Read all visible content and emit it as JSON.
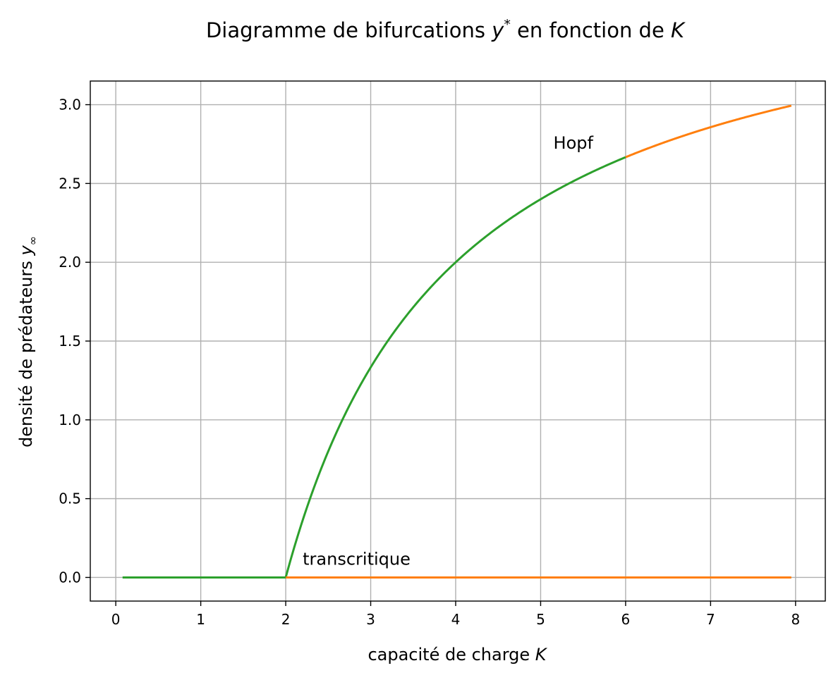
{
  "chart_data": {
    "type": "line",
    "title": {
      "prefix": "Diagramme de bifurcations ",
      "var": "y",
      "sup": "*",
      "middle": " en fonction de ",
      "param": "K"
    },
    "xlabel": {
      "text": "capacité de charge ",
      "var": "K"
    },
    "ylabel": {
      "text": "densité de prédateurs ",
      "var": "y",
      "sub": "∞"
    },
    "xlim": [
      -0.3,
      8.35
    ],
    "ylim": [
      -0.15,
      3.15
    ],
    "xticks": [
      0,
      1,
      2,
      3,
      4,
      5,
      6,
      7,
      8
    ],
    "xtick_labels": [
      "0",
      "1",
      "2",
      "3",
      "4",
      "5",
      "6",
      "7",
      "8"
    ],
    "yticks": [
      0.0,
      0.5,
      1.0,
      1.5,
      2.0,
      2.5,
      3.0
    ],
    "ytick_labels": [
      "0.0",
      "0.5",
      "1.0",
      "1.5",
      "2.0",
      "2.5",
      "3.0"
    ],
    "grid": true,
    "series": [
      {
        "color": "#2ca02c",
        "segments": [
          {
            "kind": "points",
            "x": [
              0.08,
              2.0
            ],
            "y": [
              0.0,
              0.0
            ]
          },
          {
            "kind": "curve",
            "x_range": [
              2.0,
              6.0
            ],
            "formula": "4*(1-2/K)"
          }
        ]
      },
      {
        "color": "#ff7f0e",
        "segments": [
          {
            "kind": "points",
            "x": [
              2.0,
              7.95
            ],
            "y": [
              0.0,
              0.0
            ]
          },
          {
            "kind": "curve",
            "x_range": [
              6.0,
              7.95
            ],
            "formula": "4*(1-2/K)"
          }
        ]
      }
    ],
    "annotations": [
      {
        "text": "Hopf",
        "x": 5.15,
        "y": 2.72
      },
      {
        "text": "transcritique",
        "x": 2.2,
        "y": 0.08
      }
    ]
  }
}
